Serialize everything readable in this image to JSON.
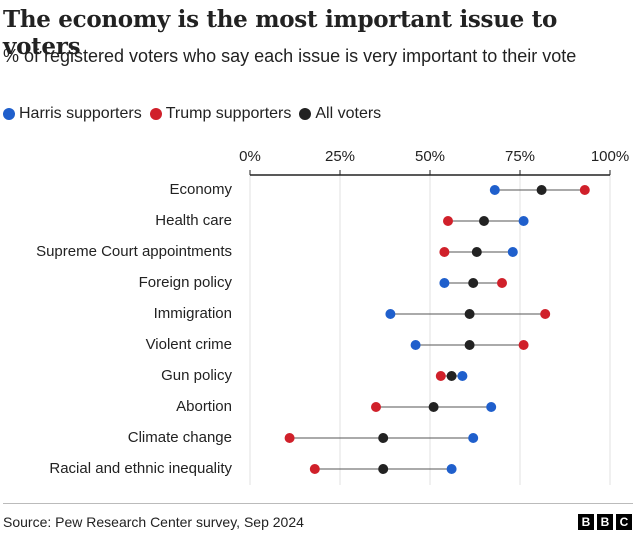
{
  "chart_data": {
    "type": "dot",
    "title": "The economy is the most important issue to voters",
    "subtitle": "% of registered voters who say each issue is very important to their vote",
    "categories": [
      "Economy",
      "Health care",
      "Supreme Court appointments",
      "Foreign policy",
      "Immigration",
      "Violent crime",
      "Gun policy",
      "Abortion",
      "Climate change",
      "Racial and ethnic inequality"
    ],
    "series": [
      {
        "name": "Harris supporters",
        "color": "#1f5fcc",
        "values": [
          68,
          76,
          73,
          54,
          39,
          46,
          59,
          67,
          62,
          56
        ]
      },
      {
        "name": "Trump supporters",
        "color": "#d0202a",
        "values": [
          93,
          55,
          54,
          70,
          82,
          76,
          53,
          35,
          11,
          18
        ]
      },
      {
        "name": "All voters",
        "color": "#222222",
        "values": [
          81,
          65,
          63,
          62,
          61,
          61,
          56,
          51,
          37,
          37
        ]
      }
    ],
    "xlim": [
      0,
      100
    ],
    "xticks": [
      {
        "value": 0,
        "label": "0%"
      },
      {
        "value": 25,
        "label": "25%"
      },
      {
        "value": 50,
        "label": "50%"
      },
      {
        "value": 75,
        "label": "75%"
      },
      {
        "value": 100,
        "label": "100%"
      }
    ],
    "grid": true,
    "source": "Source: Pew Research Center survey, Sep 2024",
    "logo": [
      "B",
      "B",
      "C"
    ]
  }
}
